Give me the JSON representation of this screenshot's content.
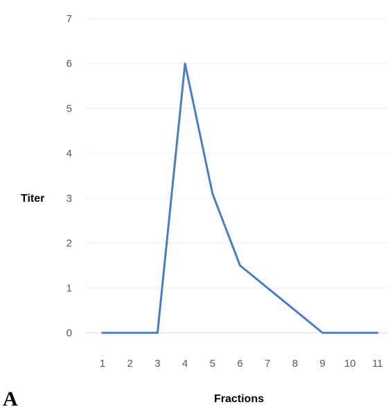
{
  "panel_label": "A",
  "chart_data": {
    "type": "line",
    "title": "",
    "xlabel": "Fractions",
    "ylabel": "Titer",
    "x": [
      1,
      2,
      3,
      4,
      5,
      6,
      7,
      8,
      9,
      10,
      11
    ],
    "series": [
      {
        "values": [
          0,
          0,
          0,
          6,
          3.1,
          1.5,
          1,
          0.5,
          0,
          0,
          0
        ]
      }
    ],
    "y_ticks": [
      0,
      1,
      2,
      3,
      4,
      5,
      6,
      7
    ],
    "ylim": [
      0,
      7
    ],
    "grid": true,
    "colors": {
      "line": "#4a7cc1",
      "grid": "#ececec",
      "tick_text": "#595959"
    }
  }
}
